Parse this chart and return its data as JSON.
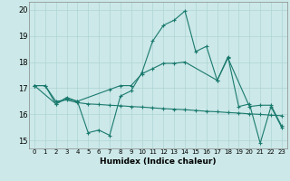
{
  "title": "",
  "xlabel": "Humidex (Indice chaleur)",
  "ylabel": "",
  "bg_color": "#cce8e8",
  "line_color": "#1a7a6e",
  "grid_color": "#aed4d4",
  "xlim": [
    -0.5,
    23.5
  ],
  "ylim": [
    14.7,
    20.3
  ],
  "yticks": [
    15,
    16,
    17,
    18,
    19,
    20
  ],
  "xticks": [
    0,
    1,
    2,
    3,
    4,
    5,
    6,
    7,
    8,
    9,
    10,
    11,
    12,
    13,
    14,
    15,
    16,
    17,
    18,
    19,
    20,
    21,
    22,
    23
  ],
  "line1_x": [
    0,
    1,
    2,
    3,
    4,
    5,
    6,
    7,
    8,
    9,
    10,
    11,
    12,
    13,
    14,
    15,
    16,
    17,
    18,
    19,
    20,
    21,
    22,
    23
  ],
  "line1_y": [
    17.1,
    17.1,
    16.4,
    16.6,
    16.5,
    15.3,
    15.4,
    15.2,
    16.7,
    16.9,
    17.6,
    18.8,
    19.4,
    19.6,
    19.95,
    18.4,
    18.6,
    17.3,
    18.2,
    16.3,
    16.4,
    14.9,
    16.3,
    15.5
  ],
  "line2_x": [
    0,
    2,
    3,
    4,
    7,
    8,
    9,
    10,
    11,
    12,
    13,
    14,
    17,
    18,
    20,
    21,
    22,
    23
  ],
  "line2_y": [
    17.1,
    16.4,
    16.65,
    16.5,
    16.95,
    17.1,
    17.1,
    17.55,
    17.75,
    17.95,
    17.95,
    18.0,
    17.3,
    18.15,
    16.3,
    16.35,
    16.35,
    15.55
  ],
  "line3_x": [
    0,
    1,
    2,
    3,
    4,
    5,
    6,
    7,
    8,
    9,
    10,
    11,
    12,
    13,
    14,
    15,
    16,
    17,
    18,
    19,
    20,
    21,
    22,
    23
  ],
  "line3_y": [
    17.1,
    17.1,
    16.5,
    16.55,
    16.45,
    16.4,
    16.38,
    16.35,
    16.33,
    16.3,
    16.28,
    16.25,
    16.22,
    16.2,
    16.18,
    16.15,
    16.12,
    16.1,
    16.07,
    16.05,
    16.02,
    16.0,
    15.97,
    15.95
  ]
}
